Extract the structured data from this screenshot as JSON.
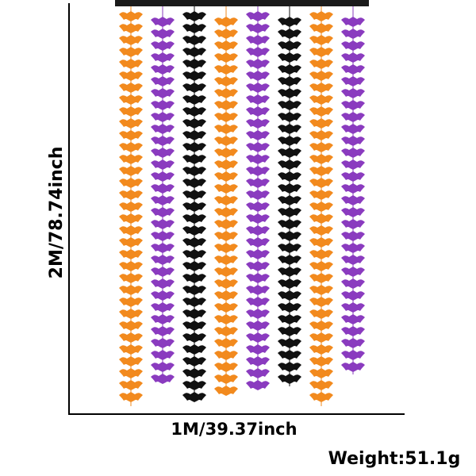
{
  "dimensions": {
    "height": "2M/78.74inch",
    "width": "1M/39.37inch"
  },
  "weight": "Weight:51.1g"
}
